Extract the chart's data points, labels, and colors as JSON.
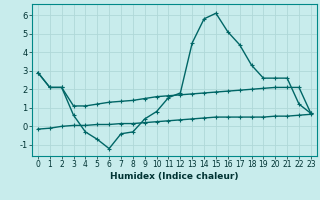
{
  "xlabel": "Humidex (Indice chaleur)",
  "background_color": "#c8ecec",
  "grid_color": "#b0d8d8",
  "line_color": "#006666",
  "xlim": [
    -0.5,
    23.5
  ],
  "ylim": [
    -1.6,
    6.6
  ],
  "xticks": [
    0,
    1,
    2,
    3,
    4,
    5,
    6,
    7,
    8,
    9,
    10,
    11,
    12,
    13,
    14,
    15,
    16,
    17,
    18,
    19,
    20,
    21,
    22,
    23
  ],
  "yticks": [
    -1,
    0,
    1,
    2,
    3,
    4,
    5,
    6
  ],
  "line1_x": [
    0,
    1,
    2,
    3,
    4,
    5,
    6,
    7,
    8,
    9,
    10,
    11,
    12,
    13,
    14,
    15,
    16,
    17,
    18,
    19,
    20,
    21,
    22,
    23
  ],
  "line1_y": [
    2.9,
    2.1,
    2.1,
    0.6,
    -0.3,
    -0.7,
    -1.2,
    -0.4,
    -0.3,
    0.4,
    0.8,
    1.55,
    1.8,
    4.5,
    5.8,
    6.1,
    5.1,
    4.4,
    3.3,
    2.6,
    2.6,
    2.6,
    1.2,
    0.7
  ],
  "line2_x": [
    0,
    1,
    2,
    3,
    4,
    5,
    6,
    7,
    8,
    9,
    10,
    11,
    12,
    13,
    14,
    15,
    16,
    17,
    18,
    19,
    20,
    21,
    22,
    23
  ],
  "line2_y": [
    2.9,
    2.1,
    2.1,
    1.1,
    1.1,
    1.2,
    1.3,
    1.35,
    1.4,
    1.5,
    1.6,
    1.65,
    1.7,
    1.75,
    1.8,
    1.85,
    1.9,
    1.95,
    2.0,
    2.05,
    2.1,
    2.1,
    2.1,
    0.7
  ],
  "line3_x": [
    0,
    1,
    2,
    3,
    4,
    5,
    6,
    7,
    8,
    9,
    10,
    11,
    12,
    13,
    14,
    15,
    16,
    17,
    18,
    19,
    20,
    21,
    22,
    23
  ],
  "line3_y": [
    -0.15,
    -0.1,
    0.0,
    0.05,
    0.05,
    0.1,
    0.1,
    0.15,
    0.15,
    0.2,
    0.25,
    0.3,
    0.35,
    0.4,
    0.45,
    0.5,
    0.5,
    0.5,
    0.5,
    0.5,
    0.55,
    0.55,
    0.6,
    0.65
  ],
  "xlabel_fontsize": 6.5,
  "tick_fontsize": 5.5,
  "linewidth": 1.0,
  "marker_size": 3
}
